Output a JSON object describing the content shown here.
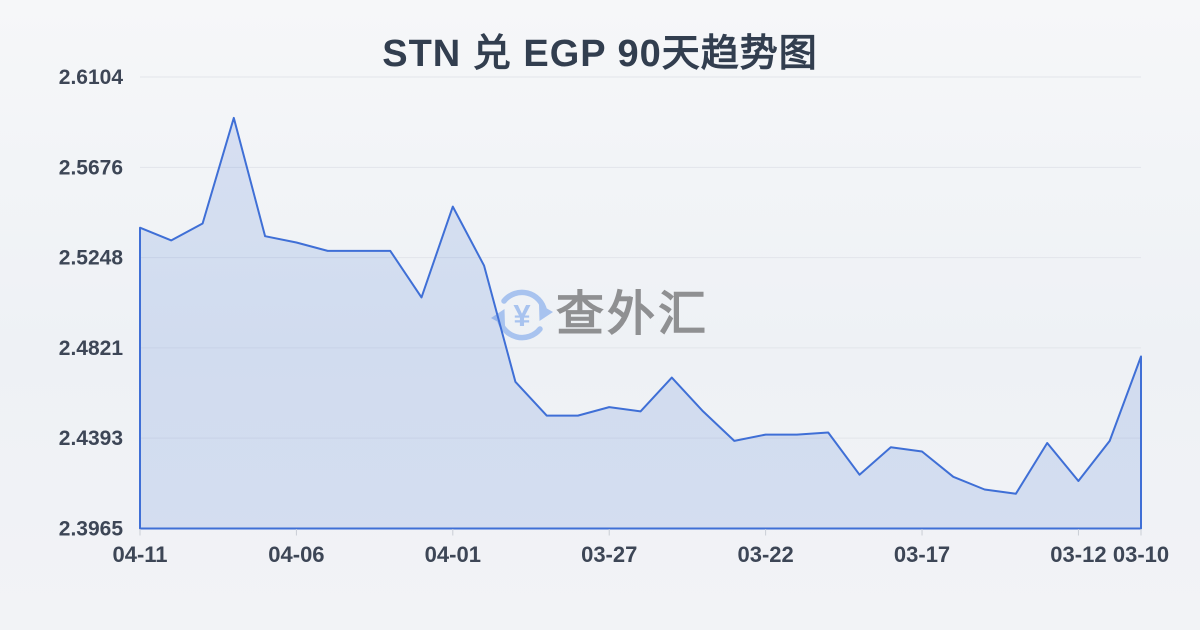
{
  "title": "STN 兑 EGP 90天趋势图",
  "watermark": {
    "text": "查外汇",
    "icon": "yen-refresh-icon"
  },
  "theme": {
    "background_top": "#f6f7f9",
    "background_bottom": "#eef1f5",
    "line_color": "#3f6fd6",
    "area_fill_color": "#3f6fd6",
    "area_fill_opacity": 0.16,
    "grid_color": "#e2e5ea",
    "tick_color": "#c9cdd5",
    "title_color": "#323e4f",
    "axis_label_color": "#3d4656",
    "watermark_text_color": "#8f9092",
    "watermark_icon_color": "#a8c3ef"
  },
  "chart_data": {
    "type": "area",
    "title": "STN 兑 EGP 90天趋势图",
    "xlabel": "",
    "ylabel": "",
    "grid": true,
    "legend_position": "none",
    "ylim": [
      2.3965,
      2.6104
    ],
    "y_tick_labels": [
      "2.6104",
      "2.5676",
      "2.5248",
      "2.4821",
      "2.4393",
      "2.3965"
    ],
    "x_tick_labels": [
      "04-11",
      "04-06",
      "04-01",
      "03-27",
      "03-22",
      "03-17",
      "03-12",
      "03-10"
    ],
    "x": [
      "04-11",
      "04-10",
      "04-09",
      "04-08",
      "04-07",
      "04-06",
      "04-05",
      "04-04",
      "04-03",
      "04-02",
      "04-01",
      "03-31",
      "03-30",
      "03-29",
      "03-28",
      "03-27",
      "03-26",
      "03-25",
      "03-24",
      "03-23",
      "03-22",
      "03-21",
      "03-20",
      "03-19",
      "03-18",
      "03-17",
      "03-16",
      "03-15",
      "03-14",
      "03-13",
      "03-12",
      "03-11",
      "03-10"
    ],
    "values": [
      2.539,
      2.533,
      2.541,
      2.591,
      2.535,
      2.532,
      2.528,
      2.528,
      2.528,
      2.506,
      2.549,
      2.521,
      2.466,
      2.45,
      2.45,
      2.454,
      2.452,
      2.468,
      2.452,
      2.438,
      2.441,
      2.441,
      2.442,
      2.422,
      2.435,
      2.433,
      2.421,
      2.415,
      2.413,
      2.437,
      2.419,
      2.438,
      2.478
    ]
  }
}
